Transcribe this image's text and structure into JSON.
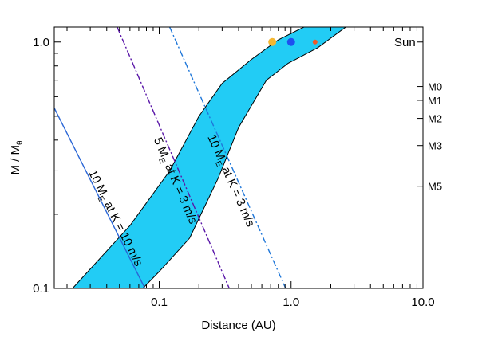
{
  "chart_data": {
    "type": "line",
    "title": "",
    "xlabel": "Distance (AU)",
    "ylabel": "M / M",
    "ylabel_subscript": "θ",
    "xscale": "log",
    "yscale": "log",
    "xlim": [
      0.016,
      10.0
    ],
    "ylim": [
      0.1,
      1.15
    ],
    "x_tick_labels": [
      {
        "value": 0.1,
        "label": "0.1"
      },
      {
        "value": 1.0,
        "label": "1.0"
      },
      {
        "value": 10.0,
        "label": "10.0"
      }
    ],
    "y_tick_labels": [
      {
        "value": 0.1,
        "label": "0.1"
      },
      {
        "value": 1.0,
        "label": "1.0"
      }
    ],
    "right_axis_labels": [
      {
        "value": 1.0,
        "label": "Sun"
      },
      {
        "value": 0.66,
        "label": "M0"
      },
      {
        "value": 0.58,
        "label": "M1"
      },
      {
        "value": 0.49,
        "label": "M2"
      },
      {
        "value": 0.38,
        "label": "M3"
      },
      {
        "value": 0.26,
        "label": "M5"
      }
    ],
    "habitable_zone": {
      "color": "#22ccf5",
      "inner_edge": [
        {
          "x": 0.022,
          "y": 0.1
        },
        {
          "x": 0.06,
          "y": 0.18
        },
        {
          "x": 0.12,
          "y": 0.3
        },
        {
          "x": 0.2,
          "y": 0.5
        },
        {
          "x": 0.3,
          "y": 0.68
        },
        {
          "x": 0.5,
          "y": 0.85
        },
        {
          "x": 0.8,
          "y": 1.02
        },
        {
          "x": 1.25,
          "y": 1.15
        }
      ],
      "outer_edge": [
        {
          "x": 2.6,
          "y": 1.15
        },
        {
          "x": 1.6,
          "y": 0.95
        },
        {
          "x": 0.95,
          "y": 0.82
        },
        {
          "x": 0.65,
          "y": 0.7
        },
        {
          "x": 0.4,
          "y": 0.45
        },
        {
          "x": 0.28,
          "y": 0.28
        },
        {
          "x": 0.17,
          "y": 0.16
        },
        {
          "x": 0.1,
          "y": 0.117
        },
        {
          "x": 0.075,
          "y": 0.1
        }
      ]
    },
    "series": [
      {
        "label": "10 M",
        "sub": "E",
        "rest": " at K = 10 m/s",
        "color": "#2a66d6",
        "dash": "solid",
        "points": [
          {
            "x": 0.016,
            "y": 0.54
          },
          {
            "x": 0.078,
            "y": 0.1
          }
        ]
      },
      {
        "label": "5 M",
        "sub": "E",
        "rest": " at K = 3 m/s",
        "color": "#5a17a8",
        "dash": "dashdot",
        "points": [
          {
            "x": 0.048,
            "y": 1.15
          },
          {
            "x": 0.34,
            "y": 0.1
          }
        ]
      },
      {
        "label": "10 M",
        "sub": "E",
        "rest": " at K = 3 m/s",
        "color": "#1f77d9",
        "dash": "dashdot",
        "points": [
          {
            "x": 0.12,
            "y": 1.15
          },
          {
            "x": 0.91,
            "y": 0.1
          }
        ]
      }
    ],
    "points": [
      {
        "x": 0.72,
        "y": 1.0,
        "color": "#f5b731",
        "size": "medium"
      },
      {
        "x": 1.0,
        "y": 1.0,
        "color": "#1e50f0",
        "size": "medium"
      },
      {
        "x": 1.52,
        "y": 1.0,
        "color": "#f05a28",
        "size": "small"
      }
    ],
    "grid": false,
    "legend": "none"
  }
}
